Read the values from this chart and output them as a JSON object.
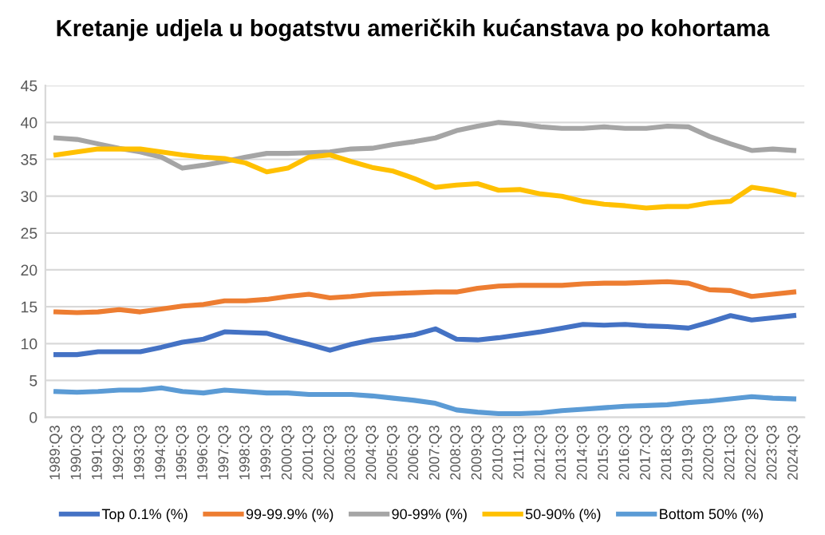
{
  "chart_data": {
    "type": "line",
    "title": "Kretanje udjela u bogatstvu američkih kućanstava po kohortama",
    "categories": [
      "1989:Q3",
      "1990:Q3",
      "1991:Q3",
      "1992:Q3",
      "1993:Q3",
      "1994:Q3",
      "1995:Q3",
      "1996:Q3",
      "1997:Q3",
      "1998:Q3",
      "1999:Q3",
      "2000:Q3",
      "2001:Q3",
      "2002:Q3",
      "2003:Q3",
      "2004:Q3",
      "2005:Q3",
      "2006:Q3",
      "2007:Q3",
      "2008:Q3",
      "2009:Q3",
      "2010:Q3",
      "2011:Q3",
      "2012:Q3",
      "2013:Q3",
      "2014:Q3",
      "2015:Q3",
      "2016:Q3",
      "2017:Q3",
      "2018:Q3",
      "2019:Q3",
      "2020:Q3",
      "2021:Q3",
      "2022:Q3",
      "2023:Q3",
      "2024:Q3"
    ],
    "series": [
      {
        "name": "Top 0.1% (%)",
        "color": "#4472c4",
        "values": [
          8.5,
          8.5,
          8.9,
          8.9,
          8.9,
          9.5,
          10.2,
          10.6,
          11.6,
          11.5,
          11.4,
          10.6,
          9.9,
          9.1,
          9.9,
          10.5,
          10.8,
          11.2,
          12.0,
          10.6,
          10.5,
          10.8,
          11.2,
          11.6,
          12.1,
          12.6,
          12.5,
          12.6,
          12.4,
          12.3,
          12.1,
          12.9,
          13.8,
          13.2,
          13.5,
          13.8
        ]
      },
      {
        "name": "99-99.9% (%)",
        "color": "#ed7d31",
        "values": [
          14.3,
          14.2,
          14.3,
          14.6,
          14.3,
          14.7,
          15.1,
          15.3,
          15.8,
          15.8,
          16.0,
          16.4,
          16.7,
          16.2,
          16.4,
          16.7,
          16.8,
          16.9,
          17.0,
          17.0,
          17.5,
          17.8,
          17.9,
          17.9,
          17.9,
          18.1,
          18.2,
          18.2,
          18.3,
          18.4,
          18.2,
          17.3,
          17.2,
          16.4,
          16.7,
          17.0
        ]
      },
      {
        "name": "90-99% (%)",
        "color": "#a5a5a5",
        "values": [
          37.9,
          37.7,
          37.1,
          36.5,
          36.0,
          35.3,
          33.8,
          34.2,
          34.7,
          35.3,
          35.8,
          35.8,
          35.9,
          36.0,
          36.4,
          36.5,
          37.0,
          37.4,
          37.9,
          38.9,
          39.5,
          40.0,
          39.8,
          39.4,
          39.2,
          39.2,
          39.4,
          39.2,
          39.2,
          39.5,
          39.4,
          38.1,
          37.1,
          36.2,
          36.4,
          36.2
        ]
      },
      {
        "name": "50-90% (%)",
        "color": "#ffc000",
        "values": [
          35.6,
          36.0,
          36.4,
          36.4,
          36.4,
          36.0,
          35.6,
          35.3,
          35.1,
          34.5,
          33.3,
          33.8,
          35.3,
          35.6,
          34.7,
          33.9,
          33.4,
          32.4,
          31.2,
          31.5,
          31.7,
          30.8,
          30.9,
          30.3,
          30.0,
          29.3,
          28.9,
          28.7,
          28.4,
          28.6,
          28.6,
          29.1,
          29.3,
          31.2,
          30.8,
          30.2
        ]
      },
      {
        "name": "Bottom 50% (%)",
        "color": "#5b9bd5",
        "values": [
          3.5,
          3.4,
          3.5,
          3.7,
          3.7,
          4.0,
          3.5,
          3.3,
          3.7,
          3.5,
          3.3,
          3.3,
          3.1,
          3.1,
          3.1,
          2.9,
          2.6,
          2.3,
          1.9,
          1.0,
          0.7,
          0.5,
          0.5,
          0.6,
          0.9,
          1.1,
          1.3,
          1.5,
          1.6,
          1.7,
          2.0,
          2.2,
          2.5,
          2.8,
          2.6,
          2.5
        ]
      }
    ],
    "ylim": [
      0,
      45
    ],
    "yticks": [
      0,
      5,
      10,
      15,
      20,
      25,
      30,
      35,
      40,
      45
    ],
    "grid": "y",
    "legend": "bottom",
    "marker": "none",
    "line_style": "solid"
  }
}
